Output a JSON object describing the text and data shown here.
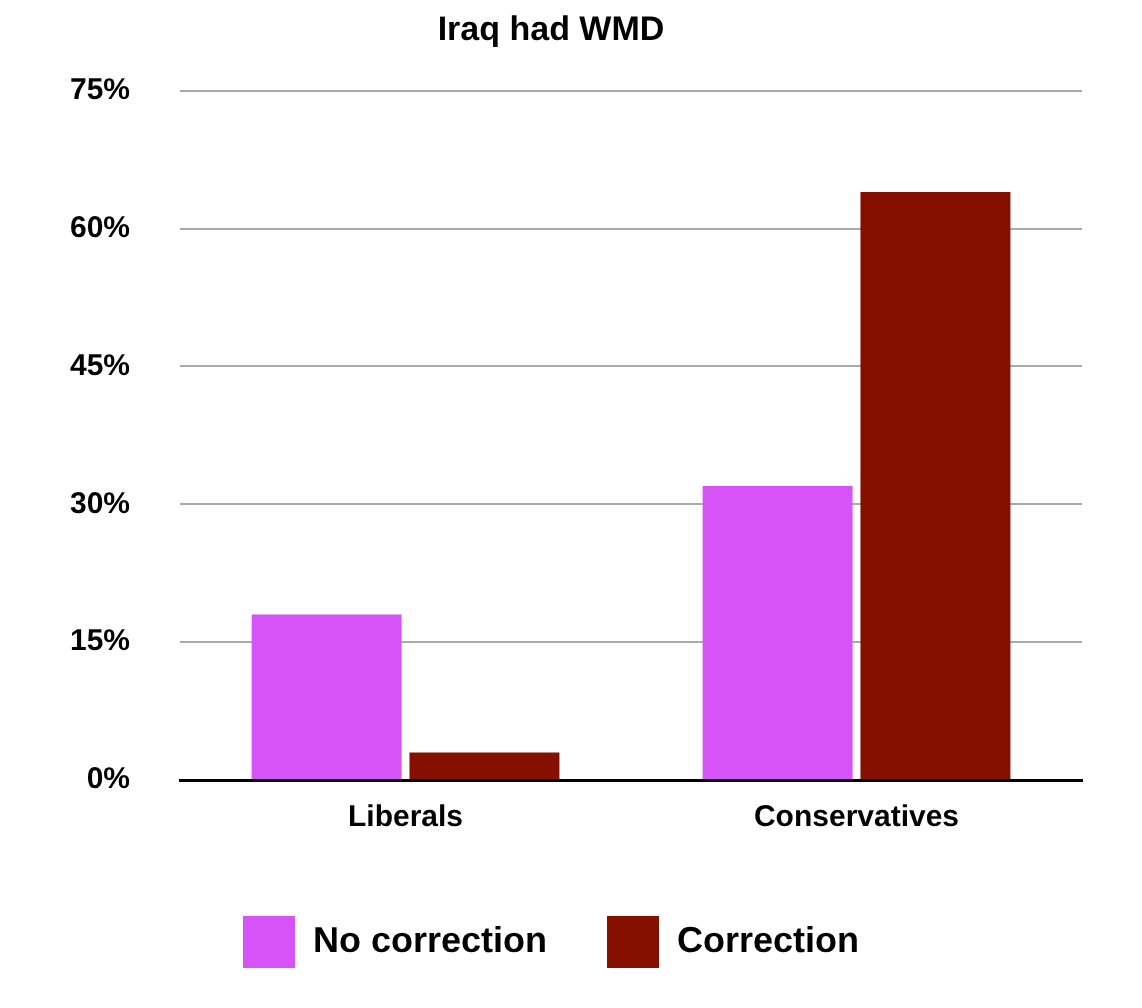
{
  "chart_data": {
    "type": "bar",
    "title": "Iraq had WMD",
    "categories": [
      "Liberals",
      "Conservatives"
    ],
    "series": [
      {
        "name": "No correction",
        "color": "#d653f7",
        "values": [
          18,
          32
        ]
      },
      {
        "name": "Correction",
        "color": "#861000",
        "values": [
          3,
          64
        ]
      }
    ],
    "ylim": [
      0,
      75
    ],
    "yticks": [
      {
        "value": 0,
        "label": "0%"
      },
      {
        "value": 15,
        "label": "15%"
      },
      {
        "value": 30,
        "label": "30%"
      },
      {
        "value": 45,
        "label": "45%"
      },
      {
        "value": 60,
        "label": "60%"
      },
      {
        "value": 75,
        "label": "75%"
      }
    ],
    "grid": "y",
    "legend": "bottom"
  }
}
